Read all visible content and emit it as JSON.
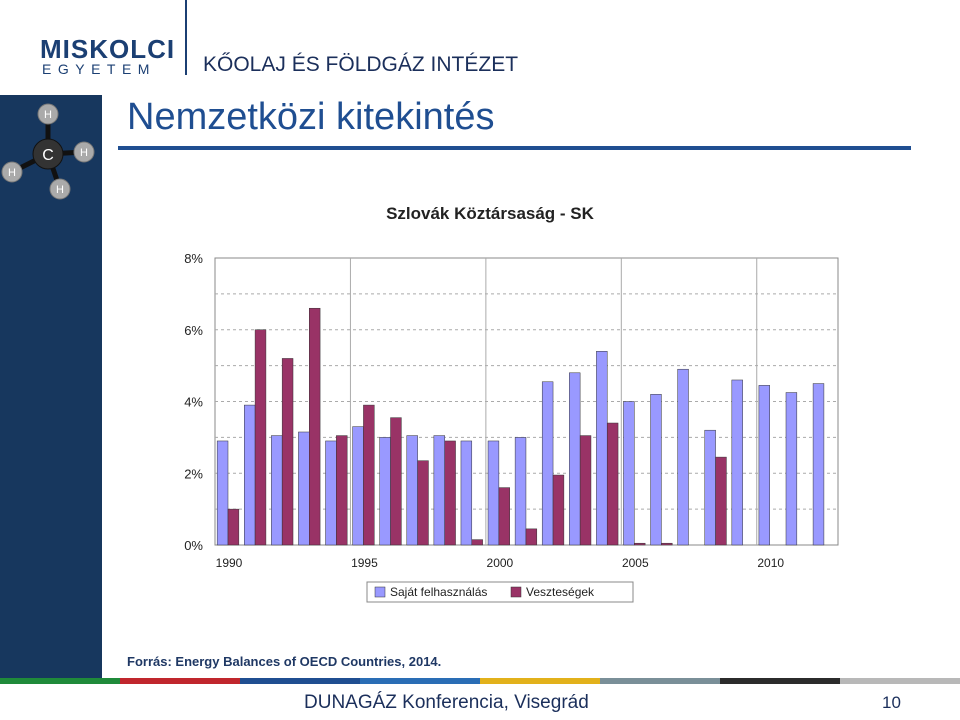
{
  "header": {
    "logo_main": "MISKOLCI",
    "logo_sub": "EGYETEM",
    "institute": "KŐOLAJ ÉS FÖLDGÁZ INTÉZET"
  },
  "molecule": {
    "center": "C",
    "atoms": [
      "H",
      "H",
      "H",
      "H"
    ]
  },
  "slide": {
    "title": "Nemzetközi kitekintés",
    "source": "Forrás: Energy Balances of OECD Countries, 2014.",
    "footer": "DUNAGÁZ Konferencia, Visegrád",
    "page_number": "10"
  },
  "colors": {
    "sidebar": "#17375e",
    "title": "#1f4e91",
    "series1": "#9999ff",
    "series2": "#993366",
    "stripes": [
      "#1f8a3a",
      "#c0262d",
      "#1f4e91",
      "#2a6db5",
      "#e2b11b",
      "#7a8f98",
      "#2b2b2b",
      "#b8b8b8"
    ]
  },
  "chart_data": {
    "type": "bar",
    "title": "Szlovák Köztársaság - SK",
    "categories": [
      "1990",
      "1991",
      "1992",
      "1993",
      "1994",
      "1995",
      "1996",
      "1997",
      "1998",
      "1999",
      "2000",
      "2001",
      "2002",
      "2003",
      "2004",
      "2005",
      "2006",
      "2007",
      "2008",
      "2009",
      "2010",
      "2011",
      "2012"
    ],
    "x_tick_labels": [
      "1990",
      "1995",
      "2000",
      "2005",
      "2010"
    ],
    "series": [
      {
        "name": "Saját felhasználás",
        "values": [
          2.9,
          3.9,
          3.05,
          3.15,
          2.9,
          3.3,
          3.0,
          3.05,
          3.05,
          2.9,
          2.9,
          3.0,
          4.55,
          4.8,
          5.4,
          4.0,
          4.2,
          4.9,
          3.2,
          4.6,
          4.45,
          4.25,
          4.5
        ]
      },
      {
        "name": "Veszteségek",
        "values": [
          1.0,
          6.0,
          5.2,
          6.6,
          3.05,
          3.9,
          3.55,
          2.35,
          2.9,
          0.15,
          1.6,
          0.45,
          1.95,
          3.05,
          3.4,
          0.05,
          0.05,
          null,
          2.45,
          null,
          null,
          null,
          null
        ]
      }
    ],
    "y_ticks": [
      "0%",
      "2%",
      "4%",
      "6%",
      "8%"
    ],
    "ylim": [
      0,
      8
    ],
    "grid": true,
    "legend_position": "bottom"
  }
}
